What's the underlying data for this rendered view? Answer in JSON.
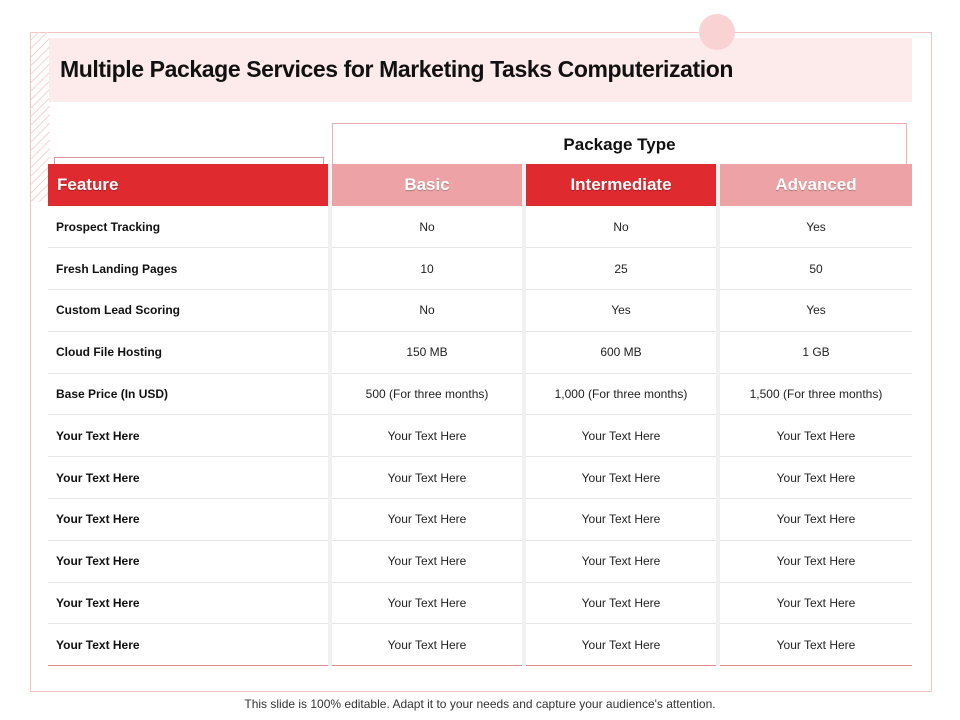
{
  "title": "Multiple Package Services for Marketing Tasks Computerization",
  "package_type_label": "Package Type",
  "table": {
    "headers": [
      "Feature",
      "Basic",
      "Intermediate",
      "Advanced"
    ],
    "rows": [
      [
        "Prospect Tracking",
        "No",
        "No",
        "Yes"
      ],
      [
        "Fresh Landing Pages",
        "10",
        "25",
        "50"
      ],
      [
        "Custom Lead Scoring",
        "No",
        "Yes",
        "Yes"
      ],
      [
        "Cloud File Hosting",
        "150 MB",
        "600 MB",
        "1 GB"
      ],
      [
        "Base Price (In USD)",
        "500 (For three months)",
        "1,000 (For three months)",
        "1,500 (For three months)"
      ],
      [
        "Your Text Here",
        "Your Text Here",
        "Your Text Here",
        "Your Text Here"
      ],
      [
        "Your Text Here",
        "Your Text Here",
        "Your Text Here",
        "Your Text Here"
      ],
      [
        "Your Text Here",
        "Your Text Here",
        "Your Text Here",
        "Your Text Here"
      ],
      [
        "Your Text Here",
        "Your Text Here",
        "Your Text Here",
        "Your Text Here"
      ],
      [
        "Your Text Here",
        "Your Text Here",
        "Your Text Here",
        "Your Text Here"
      ],
      [
        "Your Text Here",
        "Your Text Here",
        "Your Text Here",
        "Your Text Here"
      ]
    ]
  },
  "footer": "This slide is 100% editable. Adapt it to your needs and capture your audience's attention.",
  "colors": {
    "accent_red": "#df2a30",
    "accent_pink": "#eda3a6",
    "title_band": "#fdeaea"
  }
}
